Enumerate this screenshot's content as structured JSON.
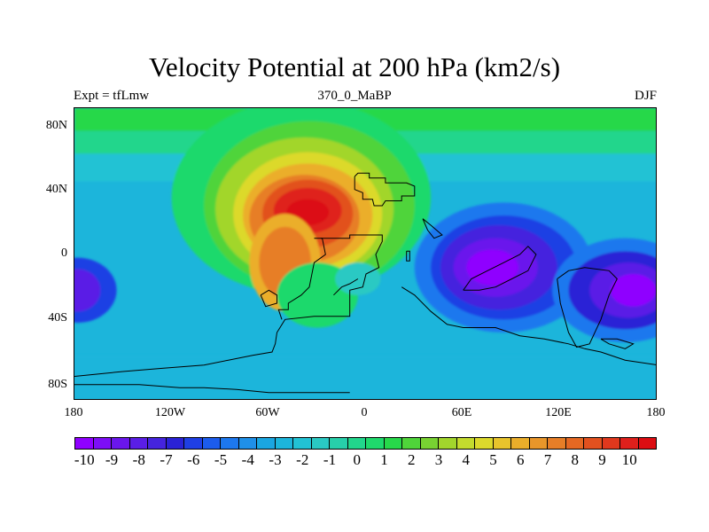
{
  "title": "Velocity Potential at 200 hPa (km2/s)",
  "subtitle_left": "Expt = tfLmw",
  "subtitle_center": "370_0_MaBP",
  "subtitle_right": "DJF",
  "lat_ticks": [
    "80N",
    "40N",
    "0",
    "40S",
    "80S"
  ],
  "lon_ticks": [
    "180",
    "120W",
    "60W",
    "0",
    "60E",
    "120E",
    "180"
  ],
  "colorbar_labels": [
    "-10",
    "-9",
    "-8",
    "-7",
    "-6",
    "-5",
    "-4",
    "-3",
    "-2",
    "-1",
    "0",
    "1",
    "2",
    "3",
    "4",
    "5",
    "6",
    "7",
    "8",
    "9",
    "10"
  ],
  "colorbar_colors": [
    "#8f00ff",
    "#7d0ef6",
    "#6a16ec",
    "#5a1ee6",
    "#4524de",
    "#2a22d6",
    "#1f3fe4",
    "#1c5ced",
    "#1d78ee",
    "#1f90e8",
    "#1aa6e1",
    "#1cb5db",
    "#22c2d4",
    "#2ac9c3",
    "#27cfaa",
    "#22d68c",
    "#1fd96c",
    "#27d84a",
    "#4fd43a",
    "#78d232",
    "#a2d62c",
    "#c4db2e",
    "#dcd92c",
    "#e8c42c",
    "#ebae2a",
    "#e9962a",
    "#e77e27",
    "#e56823",
    "#e2511f",
    "#e0381d",
    "#df201c",
    "#dc0d12"
  ],
  "chart_data": {
    "type": "heatmap",
    "title": "Velocity Potential at 200 hPa (km2/s)",
    "xlabel": "",
    "ylabel": "",
    "xlim": [
      -180,
      180
    ],
    "ylim": [
      -90,
      90
    ],
    "contour_levels_range": [
      -10,
      10
    ],
    "features": [
      {
        "label": "maximum",
        "lon": -35,
        "lat": 25,
        "value": 10
      },
      {
        "label": "minimum",
        "lon": 80,
        "lat": -8,
        "value": -10
      },
      {
        "label": "minimum",
        "lon": 160,
        "lat": -25,
        "value": -10
      },
      {
        "label": "minimum",
        "lon": -178,
        "lat": -25,
        "value": -8
      }
    ]
  }
}
